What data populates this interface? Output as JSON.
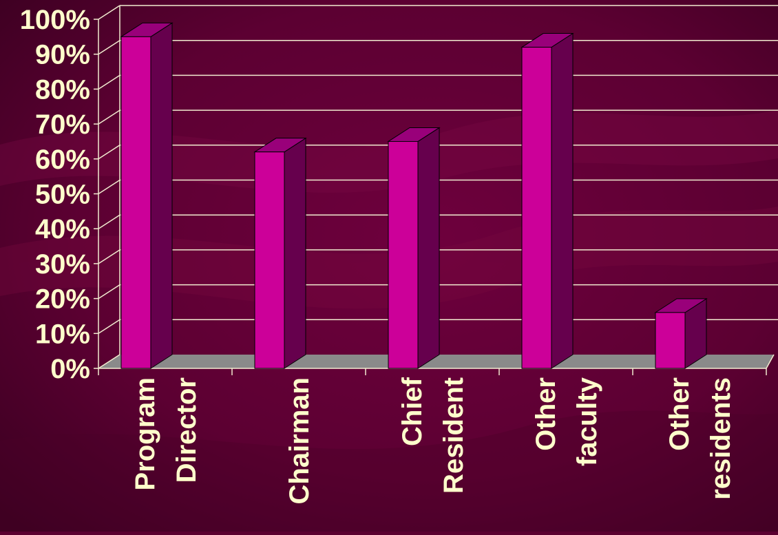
{
  "chart_data": {
    "type": "bar",
    "style": "3d-column",
    "categories": [
      [
        "Program",
        "Director"
      ],
      [
        "Chairman"
      ],
      [
        "Chief",
        "Resident"
      ],
      [
        "Other",
        "faculty"
      ],
      [
        "Other",
        "residents"
      ]
    ],
    "values": [
      95,
      62,
      65,
      92,
      16
    ],
    "y_ticks": [
      "0%",
      "10%",
      "20%",
      "30%",
      "40%",
      "50%",
      "60%",
      "70%",
      "80%",
      "90%",
      "100%"
    ],
    "ylim": [
      0,
      100
    ],
    "grid": true,
    "colors": {
      "background": "#5a0030",
      "bar_front": "#cc0099",
      "bar_side": "#66004d",
      "bar_top": "#99007a",
      "floor": "#8a8a8a",
      "gridline": "#f2ecd0",
      "text": "#ffffcc"
    }
  }
}
